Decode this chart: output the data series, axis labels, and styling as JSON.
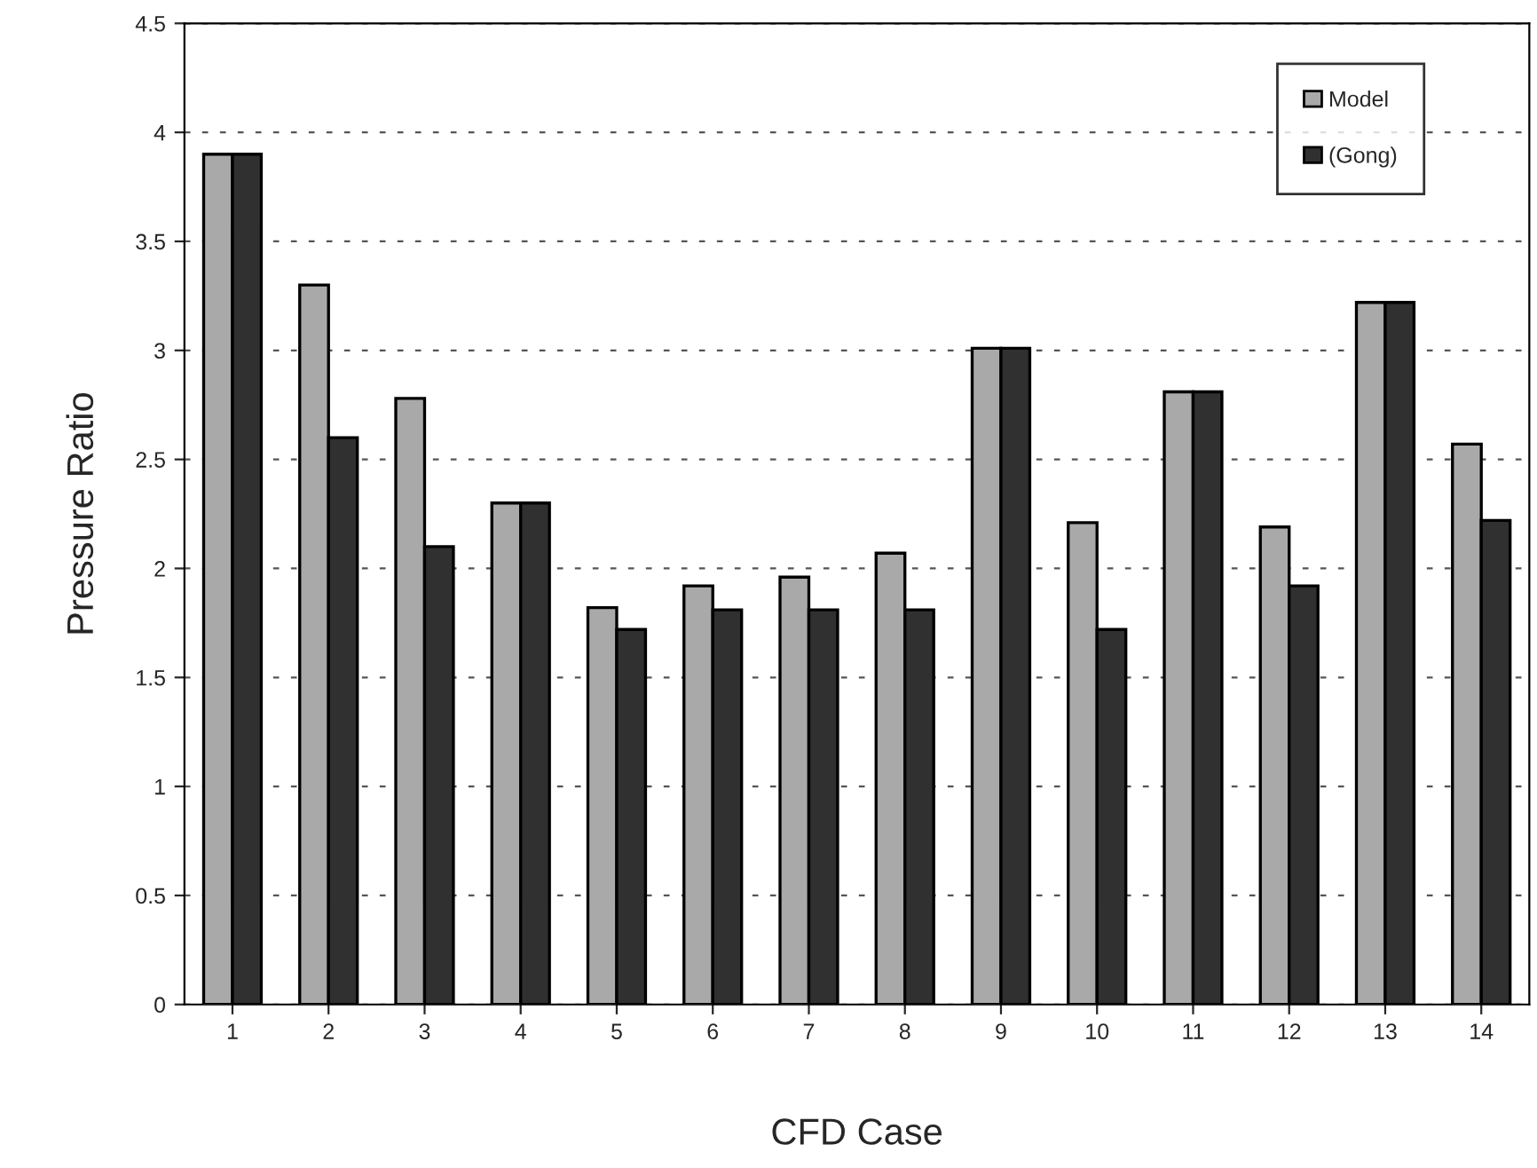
{
  "chart_data": {
    "type": "bar",
    "xlabel": "CFD Case",
    "ylabel": "Pressure Ratio",
    "categories": [
      "1",
      "2",
      "3",
      "4",
      "5",
      "6",
      "7",
      "8",
      "9",
      "10",
      "11",
      "12",
      "13",
      "14"
    ],
    "series": [
      {
        "name": "Model",
        "color": "#a9a9a9",
        "values": [
          3.9,
          3.3,
          2.78,
          2.3,
          1.82,
          1.92,
          1.96,
          2.07,
          3.01,
          2.21,
          2.81,
          2.19,
          3.22,
          2.57
        ]
      },
      {
        "name": "(Gong)",
        "color": "#303030",
        "values": [
          3.9,
          2.6,
          2.1,
          2.3,
          1.72,
          1.81,
          1.81,
          1.81,
          3.01,
          1.72,
          2.81,
          1.92,
          3.22,
          2.22
        ]
      }
    ],
    "ylim": [
      0,
      4.5
    ],
    "yticks": [
      0,
      0.5,
      1,
      1.5,
      2,
      2.5,
      3,
      3.5,
      4,
      4.5
    ],
    "grid": "y",
    "legend": "top right"
  }
}
